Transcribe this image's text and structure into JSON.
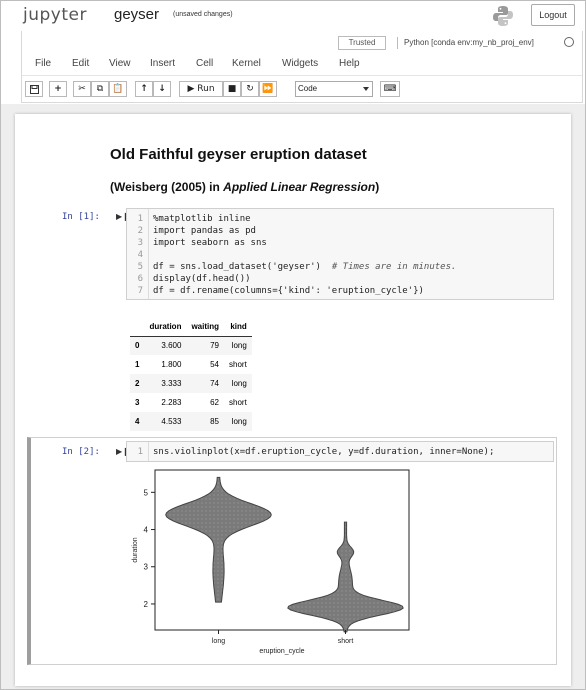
{
  "header": {
    "logo": "jupyter",
    "notebook_name": "geyser",
    "save_status": "(unsaved changes)",
    "logout_label": "Logout"
  },
  "status": {
    "trusted": "Trusted",
    "kernel": "Python [conda env:my_nb_proj_env]"
  },
  "menu": [
    "File",
    "Edit",
    "View",
    "Insert",
    "Cell",
    "Kernel",
    "Widgets",
    "Help"
  ],
  "toolbar": {
    "run_label": "Run",
    "cell_type": "Code"
  },
  "markdown": {
    "title": "Old Faithful geyser eruption dataset",
    "subtitle_prefix": "(Weisberg (2005) in ",
    "subtitle_italic": "Applied Linear Regression",
    "subtitle_suffix": ")"
  },
  "cell1": {
    "prompt": "In [1]:",
    "lines": [
      "%matplotlib inline",
      "import pandas as pd",
      "import seaborn as sns",
      "",
      "df = sns.load_dataset('geyser')  ",
      "display(df.head())",
      "df = df.rename(columns={'kind': 'eruption_cycle'})"
    ],
    "line5_comment": "# Times are in minutes."
  },
  "dataframe": {
    "columns": [
      "",
      "duration",
      "waiting",
      "kind"
    ],
    "rows": [
      [
        "0",
        "3.600",
        "79",
        "long"
      ],
      [
        "1",
        "1.800",
        "54",
        "short"
      ],
      [
        "2",
        "3.333",
        "74",
        "long"
      ],
      [
        "3",
        "2.283",
        "62",
        "short"
      ],
      [
        "4",
        "4.533",
        "85",
        "long"
      ]
    ]
  },
  "cell2": {
    "prompt": "In [2]:",
    "code": "sns.violinplot(x=df.eruption_cycle, y=df.duration, inner=None);"
  },
  "chart_data": {
    "type": "violin",
    "categories": [
      "long",
      "short"
    ],
    "xlabel": "eruption_cycle",
    "ylabel": "duration",
    "yticks": [
      2,
      3,
      4,
      5
    ],
    "ylim": [
      1.3,
      5.6
    ],
    "series": [
      {
        "name": "long",
        "min": 2.05,
        "max": 5.4,
        "mode": 4.4
      },
      {
        "name": "short",
        "min": 1.25,
        "max": 4.2,
        "mode": 1.9
      }
    ],
    "fill_color": "#7a7a7a"
  }
}
